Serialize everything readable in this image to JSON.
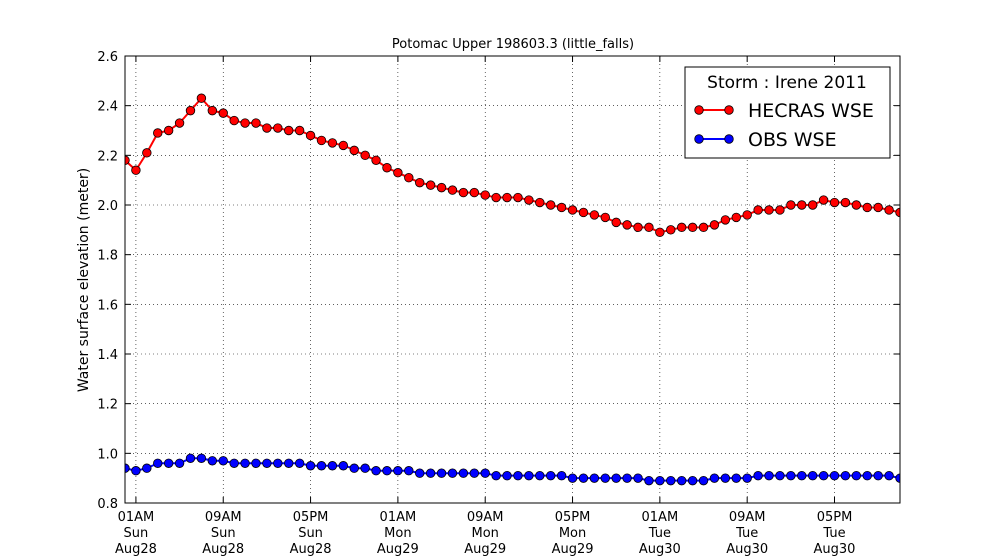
{
  "chart_data": {
    "type": "line",
    "title": "Potomac Upper 198603.3 (little_falls)",
    "xlabel": "",
    "ylabel": "Water surface elevation (meter)",
    "ylim": [
      0.8,
      2.6
    ],
    "yticks": [
      "0.8",
      "1.0",
      "1.2",
      "1.4",
      "1.6",
      "1.8",
      "2.0",
      "2.2",
      "2.4",
      "2.6"
    ],
    "x_start": "2011-08-28 00:00",
    "x_step_hours": 1,
    "xlim_hours": [
      0,
      71
    ],
    "xticks": [
      {
        "hour": 1,
        "lines": [
          "01AM",
          "Sun",
          "Aug28"
        ]
      },
      {
        "hour": 9,
        "lines": [
          "09AM",
          "Sun",
          "Aug28"
        ]
      },
      {
        "hour": 17,
        "lines": [
          "05PM",
          "Sun",
          "Aug28"
        ]
      },
      {
        "hour": 25,
        "lines": [
          "01AM",
          "Mon",
          "Aug29"
        ]
      },
      {
        "hour": 33,
        "lines": [
          "09AM",
          "Mon",
          "Aug29"
        ]
      },
      {
        "hour": 41,
        "lines": [
          "05PM",
          "Mon",
          "Aug29"
        ]
      },
      {
        "hour": 49,
        "lines": [
          "01AM",
          "Tue",
          "Aug30"
        ]
      },
      {
        "hour": 57,
        "lines": [
          "09AM",
          "Tue",
          "Aug30"
        ]
      },
      {
        "hour": 65,
        "lines": [
          "05PM",
          "Tue",
          "Aug30"
        ]
      }
    ],
    "grid": true,
    "legend": {
      "title": "Storm : Irene 2011",
      "placement": "top-right"
    },
    "series": [
      {
        "name": "HECRAS WSE",
        "color": "#ff0000",
        "values": [
          2.18,
          2.14,
          2.21,
          2.29,
          2.3,
          2.33,
          2.38,
          2.43,
          2.38,
          2.37,
          2.34,
          2.33,
          2.33,
          2.31,
          2.31,
          2.3,
          2.3,
          2.28,
          2.26,
          2.25,
          2.24,
          2.22,
          2.2,
          2.18,
          2.15,
          2.13,
          2.11,
          2.09,
          2.08,
          2.07,
          2.06,
          2.05,
          2.05,
          2.04,
          2.03,
          2.03,
          2.03,
          2.02,
          2.01,
          2.0,
          1.99,
          1.98,
          1.97,
          1.96,
          1.95,
          1.93,
          1.92,
          1.91,
          1.91,
          1.89,
          1.9,
          1.91,
          1.91,
          1.91,
          1.92,
          1.94,
          1.95,
          1.96,
          1.98,
          1.98,
          1.98,
          2.0,
          2.0,
          2.0,
          2.02,
          2.01,
          2.01,
          2.0,
          1.99,
          1.99,
          1.98,
          1.97
        ]
      },
      {
        "name": "OBS WSE",
        "color": "#0000ff",
        "values": [
          0.94,
          0.93,
          0.94,
          0.96,
          0.96,
          0.96,
          0.98,
          0.98,
          0.97,
          0.97,
          0.96,
          0.96,
          0.96,
          0.96,
          0.96,
          0.96,
          0.96,
          0.95,
          0.95,
          0.95,
          0.95,
          0.94,
          0.94,
          0.93,
          0.93,
          0.93,
          0.93,
          0.92,
          0.92,
          0.92,
          0.92,
          0.92,
          0.92,
          0.92,
          0.91,
          0.91,
          0.91,
          0.91,
          0.91,
          0.91,
          0.91,
          0.9,
          0.9,
          0.9,
          0.9,
          0.9,
          0.9,
          0.9,
          0.89,
          0.89,
          0.89,
          0.89,
          0.89,
          0.89,
          0.9,
          0.9,
          0.9,
          0.9,
          0.91,
          0.91,
          0.91,
          0.91,
          0.91,
          0.91,
          0.91,
          0.91,
          0.91,
          0.91,
          0.91,
          0.91,
          0.91,
          0.9
        ]
      }
    ]
  }
}
